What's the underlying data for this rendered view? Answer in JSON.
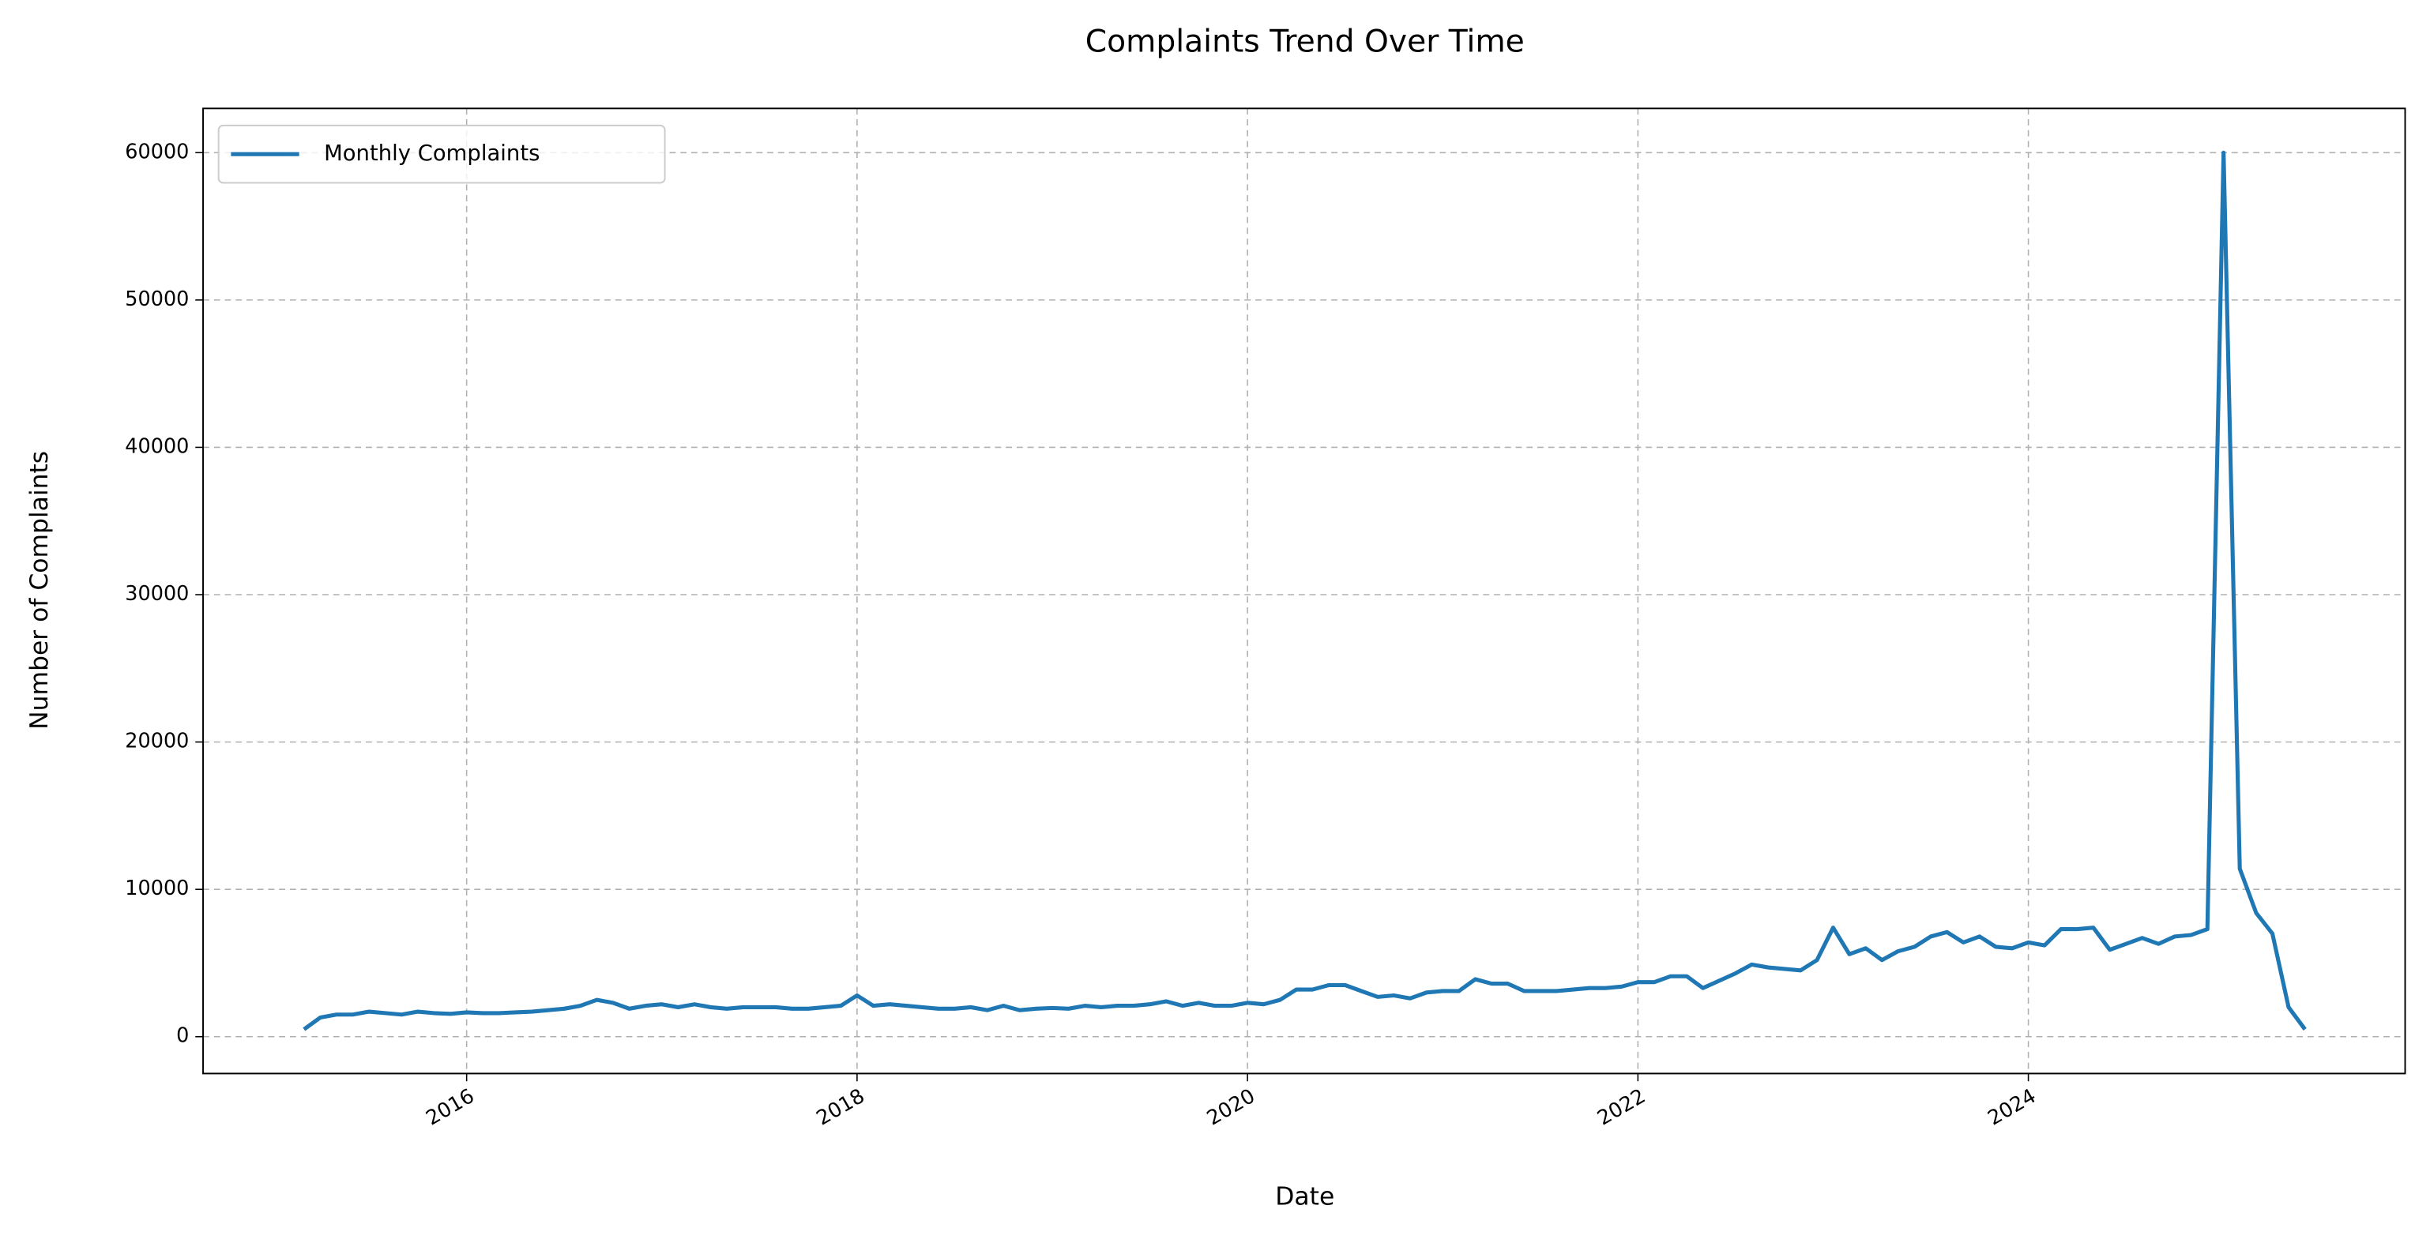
{
  "chart_data": {
    "type": "line",
    "title": "Complaints Trend Over Time",
    "x_label": "Date",
    "y_label": "Number of Complaints",
    "x": [
      2015.167,
      2015.25,
      2015.333,
      2015.417,
      2015.5,
      2015.583,
      2015.667,
      2015.75,
      2015.833,
      2015.917,
      2016,
      2016.083,
      2016.167,
      2016.25,
      2016.333,
      2016.417,
      2016.5,
      2016.583,
      2016.667,
      2016.75,
      2016.833,
      2016.917,
      2017,
      2017.083,
      2017.167,
      2017.25,
      2017.333,
      2017.417,
      2017.5,
      2017.583,
      2017.667,
      2017.75,
      2017.833,
      2017.917,
      2018,
      2018.083,
      2018.167,
      2018.25,
      2018.333,
      2018.417,
      2018.5,
      2018.583,
      2018.667,
      2018.75,
      2018.833,
      2018.917,
      2019,
      2019.083,
      2019.167,
      2019.25,
      2019.333,
      2019.417,
      2019.5,
      2019.583,
      2019.667,
      2019.75,
      2019.833,
      2019.917,
      2020,
      2020.083,
      2020.167,
      2020.25,
      2020.333,
      2020.417,
      2020.5,
      2020.583,
      2020.667,
      2020.75,
      2020.833,
      2020.917,
      2021,
      2021.083,
      2021.167,
      2021.25,
      2021.333,
      2021.417,
      2021.5,
      2021.583,
      2021.667,
      2021.75,
      2021.833,
      2021.917,
      2022,
      2022.083,
      2022.167,
      2022.25,
      2022.333,
      2022.417,
      2022.5,
      2022.583,
      2022.667,
      2022.75,
      2022.833,
      2022.917,
      2023,
      2023.083,
      2023.167,
      2023.25,
      2023.333,
      2023.417,
      2023.5,
      2023.583,
      2023.667,
      2023.75,
      2023.833,
      2023.917,
      2024,
      2024.083,
      2024.167,
      2024.25,
      2024.333,
      2024.417,
      2024.5,
      2024.583,
      2024.667,
      2024.75,
      2024.833,
      2024.917,
      2025,
      2025.083,
      2025.167,
      2025.25,
      2025.333,
      2025.417
    ],
    "series": [
      {
        "name": "Monthly Complaints",
        "color": "#1f77b4",
        "values": [
          500,
          1300,
          1500,
          1500,
          1700,
          1600,
          1500,
          1700,
          1600,
          1550,
          1650,
          1600,
          1600,
          1650,
          1700,
          1800,
          1900,
          2100,
          2500,
          2300,
          1900,
          2100,
          2200,
          2000,
          2200,
          2000,
          1900,
          2000,
          2000,
          2000,
          1900,
          1900,
          2000,
          2100,
          2800,
          2100,
          2200,
          2100,
          2000,
          1900,
          1900,
          2000,
          1800,
          2100,
          1800,
          1900,
          1950,
          1900,
          2100,
          2000,
          2100,
          2100,
          2200,
          2400,
          2100,
          2300,
          2100,
          2100,
          2300,
          2200,
          2500,
          3200,
          3200,
          3500,
          3500,
          3100,
          2700,
          2800,
          2600,
          3000,
          3100,
          3100,
          3900,
          3600,
          3600,
          3100,
          3100,
          3100,
          3200,
          3300,
          3300,
          3400,
          3700,
          3700,
          4100,
          4100,
          3300,
          3800,
          4300,
          4900,
          4700,
          4600,
          4500,
          5200,
          7400,
          5600,
          6000,
          5200,
          5800,
          6100,
          6800,
          7100,
          6400,
          6800,
          6100,
          6000,
          6400,
          6200,
          7300,
          7300,
          7400,
          5900,
          6300,
          6700,
          6300,
          6800,
          6900,
          7300,
          60000,
          11400,
          8400,
          7000,
          2000,
          500
        ]
      }
    ],
    "xlim": [
      2014.65,
      2025.93
    ],
    "xticks": [
      2016,
      2018,
      2020,
      2022,
      2024
    ],
    "ylim": [
      -2500,
      63000
    ],
    "yticks": [
      0,
      10000,
      20000,
      30000,
      40000,
      50000,
      60000
    ],
    "grid": true,
    "legend": "upper left"
  }
}
